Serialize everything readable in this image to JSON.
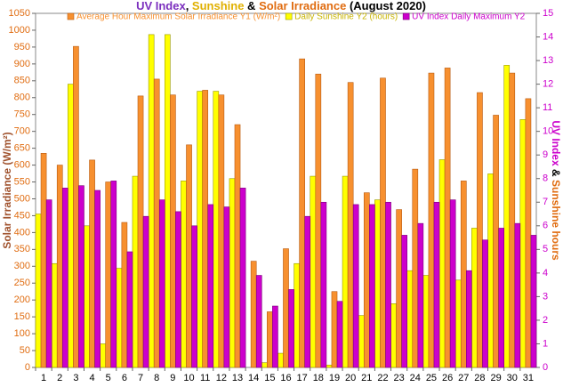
{
  "chart_data": {
    "type": "bar",
    "title": [
      {
        "text": "UV Index",
        "color": "#7b2fbe"
      },
      {
        "text": ", ",
        "color": "#000000"
      },
      {
        "text": "Sunshine",
        "color": "#e0b000"
      },
      {
        "text": " & ",
        "color": "#000000"
      },
      {
        "text": "Solar Irradiance",
        "color": "#e06c10"
      },
      {
        "text": " (August 2020)",
        "color": "#000000"
      }
    ],
    "y_label": "Solar Irradiance (W/m²)",
    "y_label_color": "#a0522d",
    "y2_label": [
      {
        "text": "UV Index",
        "color": "#cc00cc"
      },
      {
        "text": " & ",
        "color": "#000000"
      },
      {
        "text": "Sunshine hours",
        "color": "#e06c10"
      }
    ],
    "categories": [
      "1",
      "2",
      "3",
      "4",
      "5",
      "6",
      "7",
      "8",
      "9",
      "10",
      "11",
      "12",
      "13",
      "14",
      "15",
      "16",
      "17",
      "18",
      "19",
      "20",
      "21",
      "22",
      "23",
      "24",
      "25",
      "26",
      "27",
      "28",
      "29",
      "30",
      "31"
    ],
    "series": [
      {
        "name": "Daily Sunshine Y2 (hours)",
        "color": "#ffff00",
        "border": "#9a9a00",
        "axis": "y2",
        "values": [
          6.5,
          4.4,
          12.0,
          6.0,
          1.0,
          4.2,
          8.1,
          14.1,
          14.1,
          7.9,
          11.7,
          11.7,
          8.0,
          0,
          0.2,
          0.6,
          4.4,
          8.1,
          0.1,
          8.1,
          2.2,
          7.1,
          2.7,
          4.1,
          3.9,
          8.8,
          3.7,
          5.9,
          8.2,
          12.8,
          10.5
        ]
      },
      {
        "name": "Average Hour Maximum Solar Irradiance Y1 (W/m²)",
        "color": "#f7902f",
        "border": "#b85a10",
        "values": [
          635,
          600,
          952,
          615,
          550,
          430,
          805,
          855,
          808,
          660,
          822,
          808,
          720,
          315,
          165,
          352,
          915,
          870,
          225,
          845,
          518,
          858,
          468,
          588,
          873,
          888,
          553,
          815,
          748,
          873,
          797
        ]
      },
      {
        "name": "UV Index Daily Maximum Y2",
        "color": "#cc00cc",
        "border": "#7a007a",
        "axis": "y2",
        "values": [
          7.1,
          7.6,
          7.7,
          7.5,
          7.9,
          4.9,
          6.4,
          7.1,
          6.6,
          6.0,
          6.9,
          6.8,
          7.6,
          3.9,
          2.6,
          3.3,
          6.4,
          7.0,
          2.8,
          6.9,
          6.9,
          7.0,
          5.6,
          6.1,
          7.0,
          7.1,
          4.1,
          5.4,
          5.9,
          6.1,
          5.6
        ]
      }
    ],
    "ylim": [
      0,
      1050
    ],
    "yticks": [
      0,
      50,
      100,
      150,
      200,
      250,
      300,
      350,
      400,
      450,
      500,
      550,
      600,
      650,
      700,
      750,
      800,
      850,
      900,
      950,
      1000,
      1050
    ],
    "ytick_color": "#e06c10",
    "y2lim": [
      0,
      15
    ],
    "y2ticks": [
      0,
      1,
      2,
      3,
      4,
      5,
      6,
      7,
      8,
      9,
      10,
      11,
      12,
      13,
      14,
      15
    ],
    "y2tick_color": "#cc00cc",
    "grid": false
  }
}
